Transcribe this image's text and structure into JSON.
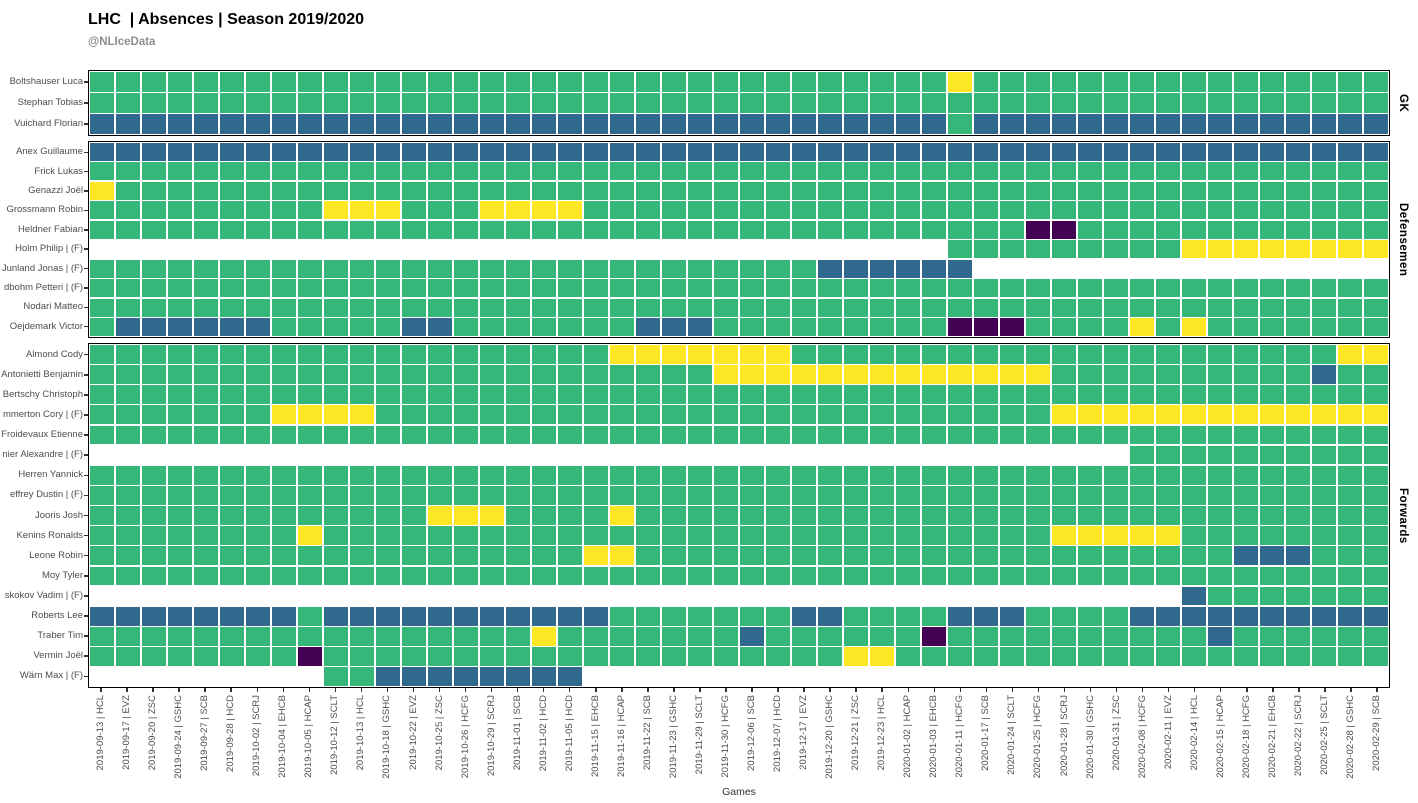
{
  "header": {
    "title": "LHC  | Absences | Season 2019/2020",
    "subtitle": "@NLIceData"
  },
  "chart_data": {
    "type": "heatmap",
    "title": "LHC  | Absences | Season 2019/2020",
    "xlabel": "Games",
    "legend_position": "none",
    "palette": {
      "G": "#35b779",
      "B": "#31688e",
      "Y": "#fde725",
      "P": "#440154",
      "W": "#ffffff"
    },
    "columns": [
      "2019-09-13 | HCL",
      "2019-09-17 | EVZ",
      "2019-09-20 | ZSC",
      "2019-09-24 | GSHC",
      "2019-09-27 | SCB",
      "2019-09-28 | HCD",
      "2019-10-02 | SCRJ",
      "2019-10-04 | EHCB",
      "2019-10-05 | HCAP",
      "2019-10-12 | SCLT",
      "2019-10-13 | HCL",
      "2019-10-18 | GSHC",
      "2019-10-22 | EVZ",
      "2019-10-25 | ZSC",
      "2019-10-26 | HCFG",
      "2019-10-29 | SCRJ",
      "2019-11-01 | SCB",
      "2019-11-02 | HCD",
      "2019-11-05 | HCD",
      "2019-11-15 | EHCB",
      "2019-11-16 | HCAP",
      "2019-11-22 | SCB",
      "2019-11-23 | GSHC",
      "2019-11-29 | SCLT",
      "2019-11-30 | HCFG",
      "2019-12-06 | SCB",
      "2019-12-07 | HCD",
      "2019-12-17 | EVZ",
      "2019-12-20 | GSHC",
      "2019-12-21 | ZSC",
      "2019-12-23 | HCL",
      "2020-01-02 | HCAP",
      "2020-01-03 | EHCB",
      "2020-01-11 | HCFG",
      "2020-01-17 | SCB",
      "2020-01-24 | SCLT",
      "2020-01-25 | HCFG",
      "2020-01-28 | SCRJ",
      "2020-01-30 | GSHC",
      "2020-01-31 | ZSC",
      "2020-02-08 | HCFG",
      "2020-02-11 | EVZ",
      "2020-02-14 | HCL",
      "2020-02-15 | HCAP",
      "2020-02-18 | HCFG",
      "2020-02-21 | EHCB",
      "2020-02-22 | SCRJ",
      "2020-02-25 | SCLT",
      "2020-02-28 | GSHC",
      "2020-02-29 | SCB"
    ],
    "panels": [
      {
        "label": "GK",
        "rows": [
          {
            "name": "Boltshauser Luca",
            "cells": "GGGGGGGGGGGGGGGGGGGGGGGGGGGGGGGGGYGGGGGGGGGGGGGGGG"
          },
          {
            "name": "Stephan Tobias",
            "cells": "GGGGGGGGGGGGGGGGGGGGGGGGGGGGGGGGGGGGGGGGGGGGGGGGGG"
          },
          {
            "name": "Vuichard Florian",
            "cells": "BBBBBBBBBBBBBBBBBBBBBBBBBBBBBBBBBGBBBBBBBBBBBBBBBB"
          }
        ]
      },
      {
        "label": "Defensemen",
        "rows": [
          {
            "name": "Anex Guillaume",
            "cells": "BBBBBBBBBBBBBBBBBBBBBBBBBBBBBBBBBBBBBBBBBBBBBBBBBB"
          },
          {
            "name": "Frick Lukas",
            "cells": "GGGGGGGGGGGGGGGGGGGGGGGGGGGGGGGGGGGGGGGGGGGGGGGGGG"
          },
          {
            "name": "Genazzi Joël",
            "cells": "YGGGGGGGGGGGGGGGGGGGGGGGGGGGGGGGGGGGGGGGGGGGGGGGGG"
          },
          {
            "name": "Grossmann Robin",
            "cells": "GGGGGGGGGYYYGGGYYYYGGGGGGGGGGGGGGGGGGGGGGGGGGGGGGG"
          },
          {
            "name": "Heldner Fabian",
            "cells": "GGGGGGGGGGGGGGGGGGGGGGGGGGGGGGGGGGGGPPGGGGGGGGGGGG"
          },
          {
            "name": "Holm Philip | (F)",
            "cells": "WWWWWWWWWWWWWWWWWWWWWWWWWWWWWWWWWGGGGGGGGGYYYYYYYY"
          },
          {
            "name": "Junland Jonas | (F)",
            "cells": "GGGGGGGGGGGGGGGGGGGGGGGGGGGGBBBBBBWWWWWWWWWWWWWWWW"
          },
          {
            "name": "dbohm Petteri | (F)",
            "cells": "GGGGGGGGGGGGGGGGGGGGGGGGGGGGGGGGGGGGGGGGGGGGGGGGGG"
          },
          {
            "name": "Nodari Matteo",
            "cells": "GGGGGGGGGGGGGGGGGGGGGGGGGGGGGGGGGGGGGGGGGGGGGGGGGG"
          },
          {
            "name": "Oejdemark Victor",
            "cells": "GBBBBBBGGGGGBBGGGGGGGBBBGGGGGGGGGPPPGGGGYGYGGGGGGG"
          }
        ]
      },
      {
        "label": "Forwards",
        "rows": [
          {
            "name": "Almond Cody",
            "cells": "GGGGGGGGGGGGGGGGGGGGYYYYYYYGGGGGGGGGGGGGGGGGGGGGYY"
          },
          {
            "name": "Antonietti Benjamin",
            "cells": "GGGGGGGGGGGGGGGGGGGGGGGGYYYYYYYYYYYYYGGGGGGGGGGBGG"
          },
          {
            "name": "Bertschy Christoph",
            "cells": "GGGGGGGGGGGGGGGGGGGGGGGGGGGGGGGGGGGGGGGGGGGGGGGGGG"
          },
          {
            "name": "mmerton Cory | (F)",
            "cells": "GGGGGGGYYYYGGGGGGGGGGGGGGGGGGGGGGGGGGYYYYYYYYYYYYY"
          },
          {
            "name": "Froidevaux Etienne",
            "cells": "GGGGGGGGGGGGGGGGGGGGGGGGGGGGGGGGGGGGGGGGGGGGGGGGGG"
          },
          {
            "name": "nier Alexandre | (F)",
            "cells": "WWWWWWWWWWWWWWWWWWWWWWWWWWWWWWWWWWWWWWWWGGGGGGGGGG"
          },
          {
            "name": "Herren Yannick",
            "cells": "GGGGGGGGGGGGGGGGGGGGGGGGGGGGGGGGGGGGGGGGGGGGGGGGGG"
          },
          {
            "name": "effrey Dustin | (F)",
            "cells": "GGGGGGGGGGGGGGGGGGGGGGGGGGGGGGGGGGGGGGGGGGGGGGGGGG"
          },
          {
            "name": "Jooris Josh",
            "cells": "GGGGGGGGGGGGGYYYGGGGYGGGGGGGGGGGGGGGGGGGGGGGGGGGGG"
          },
          {
            "name": "Kenins Ronalds",
            "cells": "GGGGGGGGYGGGGGGGGGGGGGGGGGGGGGGGGGGGGYYYYYGGGGGGGG"
          },
          {
            "name": "Leone Robin",
            "cells": "GGGGGGGGGGGGGGGGGGGYYGGGGGGGGGGGGGGGGGGGGGGGBBBGGG"
          },
          {
            "name": "Moy Tyler",
            "cells": "GGGGGGGGGGGGGGGGGGGGGGGGGGGGGGGGGGGGGGGGGGGGGGGGGG"
          },
          {
            "name": "skokov Vadim | (F)",
            "cells": "WWWWWWWWWWWWWWWWWWWWWWWWWWWWWWWWWWWWWWWWWWBGGGGGGG"
          },
          {
            "name": "Roberts Lee",
            "cells": "BBBBBBBBGBBBBBBBBBBBGGGGGGGBBGGGGBBBGGGGBBBBBBBBBB"
          },
          {
            "name": "Traber Tim",
            "cells": "GGGGGGGGGGGGGGGGGYGGGGGGGBGGGGGGPGGGGGGGGGGBGGGGGG"
          },
          {
            "name": "Vermin Joël",
            "cells": "GGGGGGGGPGGGGGGGGGGGGGGGGGGGGYYGGGGGGGGGGGGGGGGGGG"
          },
          {
            "name": "Wärn Max | (F)",
            "cells": "WWWWWWWWWGGBBBBBBBBWWWWWWWWWWWWWWWWWWWWWWWWWWWWWWW"
          }
        ]
      }
    ]
  }
}
